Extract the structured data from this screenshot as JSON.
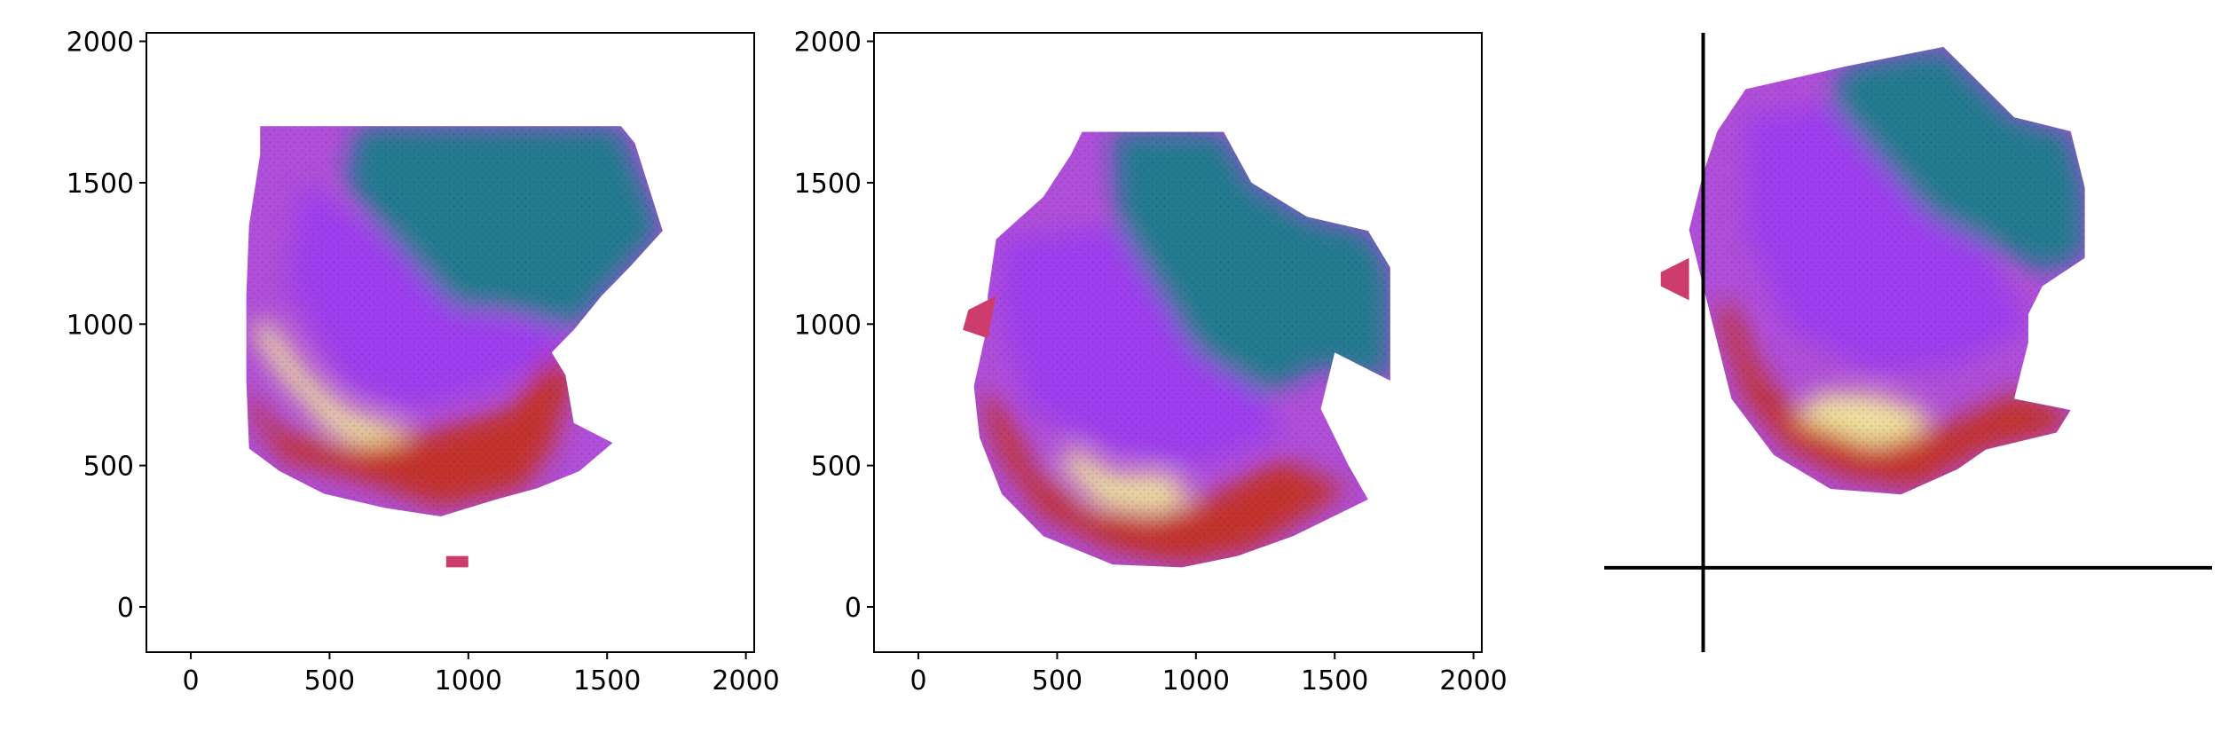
{
  "chart_data": [
    {
      "type": "scatter",
      "panel": "left",
      "title": "",
      "xlabel": "",
      "ylabel": "",
      "xlim": [
        -160,
        2030
      ],
      "ylim": [
        -160,
        2030
      ],
      "xticks": [
        0,
        500,
        1000,
        1500,
        2000
      ],
      "yticks": [
        0,
        500,
        1000,
        1500,
        2000
      ],
      "xtick_labels": [
        "0",
        "500",
        "1000",
        "1500",
        "2000"
      ],
      "ytick_labels": [
        "0",
        "500",
        "1000",
        "1500",
        "2000"
      ],
      "grid": false,
      "legend": "none",
      "marker": "hexagonal spots, RGB-colored",
      "tissue_outline": [
        [
          250,
          1700
        ],
        [
          1550,
          1700
        ],
        [
          1600,
          1640
        ],
        [
          1700,
          1330
        ],
        [
          1580,
          1200
        ],
        [
          1480,
          1100
        ],
        [
          1380,
          980
        ],
        [
          1300,
          900
        ],
        [
          1350,
          820
        ],
        [
          1380,
          650
        ],
        [
          1520,
          580
        ],
        [
          1400,
          480
        ],
        [
          1250,
          420
        ],
        [
          1100,
          380
        ],
        [
          900,
          320
        ],
        [
          700,
          350
        ],
        [
          480,
          400
        ],
        [
          320,
          480
        ],
        [
          210,
          560
        ],
        [
          200,
          800
        ],
        [
          200,
          1100
        ],
        [
          210,
          1350
        ],
        [
          250,
          1600
        ]
      ],
      "island_outline": [
        [
          920,
          180
        ],
        [
          1000,
          180
        ],
        [
          1000,
          140
        ],
        [
          920,
          140
        ]
      ],
      "color_regions": [
        {
          "name": "teal",
          "color": "#1a7f8a",
          "polygon": [
            [
              600,
              1700
            ],
            [
              1550,
              1700
            ],
            [
              1700,
              1330
            ],
            [
              1500,
              1120
            ],
            [
              1380,
              980
            ],
            [
              1150,
              1050
            ],
            [
              950,
              1060
            ],
            [
              720,
              1300
            ],
            [
              560,
              1500
            ]
          ]
        },
        {
          "name": "violet",
          "color": "#9b3cf0",
          "polygon": [
            [
              400,
              1500
            ],
            [
              720,
              1300
            ],
            [
              950,
              1060
            ],
            [
              1380,
              980
            ],
            [
              1300,
              880
            ],
            [
              1100,
              780
            ],
            [
              800,
              700
            ],
            [
              550,
              800
            ],
            [
              350,
              1150
            ]
          ]
        },
        {
          "name": "cream",
          "color": "#f4ee9a",
          "polygon": [
            [
              210,
              1000
            ],
            [
              320,
              820
            ],
            [
              500,
              620
            ],
            [
              700,
              530
            ],
            [
              800,
              620
            ],
            [
              560,
              700
            ],
            [
              420,
              820
            ],
            [
              290,
              1000
            ]
          ]
        },
        {
          "name": "red",
          "color": "#c4301c",
          "polygon": [
            [
              210,
              700
            ],
            [
              330,
              520
            ],
            [
              600,
              450
            ],
            [
              900,
              350
            ],
            [
              1200,
              420
            ],
            [
              1300,
              560
            ],
            [
              1380,
              820
            ],
            [
              1300,
              900
            ],
            [
              1150,
              700
            ],
            [
              800,
              600
            ],
            [
              550,
              560
            ],
            [
              330,
              620
            ],
            [
              210,
              760
            ]
          ]
        }
      ]
    },
    {
      "type": "scatter",
      "panel": "middle",
      "title": "",
      "xlabel": "",
      "ylabel": "",
      "xlim": [
        -160,
        2030
      ],
      "ylim": [
        -160,
        2030
      ],
      "xticks": [
        0,
        500,
        1000,
        1500,
        2000
      ],
      "yticks": [
        0,
        500,
        1000,
        1500,
        2000
      ],
      "xtick_labels": [
        "0",
        "500",
        "1000",
        "1500",
        "2000"
      ],
      "ytick_labels": [
        "0",
        "500",
        "1000",
        "1500",
        "2000"
      ],
      "grid": false,
      "legend": "none",
      "marker": "hexagonal spots, RGB-colored",
      "tissue_outline": [
        [
          590,
          1680
        ],
        [
          1100,
          1680
        ],
        [
          1200,
          1500
        ],
        [
          1400,
          1380
        ],
        [
          1620,
          1330
        ],
        [
          1700,
          1200
        ],
        [
          1700,
          800
        ],
        [
          1500,
          900
        ],
        [
          1450,
          700
        ],
        [
          1550,
          500
        ],
        [
          1620,
          380
        ],
        [
          1350,
          250
        ],
        [
          1150,
          180
        ],
        [
          950,
          140
        ],
        [
          700,
          150
        ],
        [
          450,
          250
        ],
        [
          300,
          400
        ],
        [
          220,
          600
        ],
        [
          200,
          780
        ],
        [
          250,
          1000
        ],
        [
          250,
          1100
        ],
        [
          280,
          1300
        ],
        [
          450,
          1450
        ],
        [
          550,
          1600
        ]
      ],
      "island_outline": [
        [
          180,
          1050
        ],
        [
          280,
          1100
        ],
        [
          250,
          950
        ],
        [
          160,
          980
        ]
      ],
      "color_regions": [
        {
          "name": "teal",
          "color": "#1a7f8a",
          "polygon": [
            [
              700,
              1680
            ],
            [
              1100,
              1680
            ],
            [
              1200,
              1500
            ],
            [
              1400,
              1380
            ],
            [
              1620,
              1330
            ],
            [
              1700,
              1200
            ],
            [
              1700,
              800
            ],
            [
              1450,
              850
            ],
            [
              1250,
              750
            ],
            [
              1000,
              900
            ],
            [
              850,
              1100
            ],
            [
              720,
              1350
            ]
          ]
        },
        {
          "name": "violet",
          "color": "#9b3cf0",
          "polygon": [
            [
              300,
              1300
            ],
            [
              720,
              1350
            ],
            [
              1000,
              900
            ],
            [
              1250,
              750
            ],
            [
              1300,
              600
            ],
            [
              1000,
              500
            ],
            [
              700,
              560
            ],
            [
              400,
              700
            ],
            [
              300,
              1000
            ]
          ]
        },
        {
          "name": "cream",
          "color": "#f4ee9a",
          "polygon": [
            [
              500,
              520
            ],
            [
              650,
              360
            ],
            [
              850,
              330
            ],
            [
              1000,
              380
            ],
            [
              900,
              470
            ],
            [
              700,
              470
            ],
            [
              560,
              560
            ]
          ]
        },
        {
          "name": "red",
          "color": "#c4301c",
          "polygon": [
            [
              220,
              750
            ],
            [
              300,
              520
            ],
            [
              450,
              320
            ],
            [
              700,
              200
            ],
            [
              950,
              150
            ],
            [
              1200,
              200
            ],
            [
              1400,
              320
            ],
            [
              1550,
              420
            ],
            [
              1300,
              520
            ],
            [
              1000,
              360
            ],
            [
              850,
              320
            ],
            [
              600,
              340
            ],
            [
              420,
              480
            ],
            [
              300,
              720
            ]
          ]
        }
      ]
    },
    {
      "type": "scatter",
      "panel": "right",
      "title": "",
      "xlabel": "",
      "ylabel": "",
      "xlim": [
        -350,
        1800
      ],
      "ylim": [
        -300,
        1900
      ],
      "axes": "spines crossing at origin, no ticks",
      "grid": false,
      "legend": "none",
      "marker": "hexagonal spots, RGB-colored",
      "tissue_outline": [
        [
          150,
          1700
        ],
        [
          500,
          1780
        ],
        [
          850,
          1850
        ],
        [
          1100,
          1600
        ],
        [
          1300,
          1550
        ],
        [
          1350,
          1350
        ],
        [
          1350,
          1100
        ],
        [
          1200,
          1000
        ],
        [
          1150,
          900
        ],
        [
          1150,
          800
        ],
        [
          1100,
          600
        ],
        [
          1300,
          560
        ],
        [
          1250,
          480
        ],
        [
          1000,
          420
        ],
        [
          900,
          350
        ],
        [
          700,
          260
        ],
        [
          450,
          280
        ],
        [
          250,
          400
        ],
        [
          100,
          600
        ],
        [
          50,
          800
        ],
        [
          0,
          1000
        ],
        [
          -50,
          1200
        ],
        [
          0,
          1400
        ],
        [
          50,
          1550
        ]
      ],
      "island_outline": [
        [
          -150,
          1050
        ],
        [
          -50,
          1100
        ],
        [
          -50,
          950
        ],
        [
          -150,
          1000
        ]
      ],
      "color_regions": [
        {
          "name": "teal",
          "color": "#1a7f8a",
          "polygon": [
            [
              500,
              1780
            ],
            [
              850,
              1850
            ],
            [
              1100,
              1600
            ],
            [
              1300,
              1550
            ],
            [
              1350,
              1350
            ],
            [
              1350,
              1100
            ],
            [
              1200,
              1050
            ],
            [
              1000,
              1150
            ],
            [
              800,
              1250
            ],
            [
              600,
              1450
            ],
            [
              450,
              1650
            ]
          ]
        },
        {
          "name": "violet",
          "color": "#9b3cf0",
          "polygon": [
            [
              150,
              1600
            ],
            [
              450,
              1650
            ],
            [
              800,
              1250
            ],
            [
              1000,
              1150
            ],
            [
              1150,
              850
            ],
            [
              900,
              720
            ],
            [
              600,
              700
            ],
            [
              300,
              850
            ],
            [
              150,
              1200
            ]
          ]
        },
        {
          "name": "cream",
          "color": "#f4ee9a",
          "polygon": [
            [
              300,
              500
            ],
            [
              500,
              420
            ],
            [
              750,
              430
            ],
            [
              800,
              550
            ],
            [
              600,
              620
            ],
            [
              400,
              620
            ]
          ]
        },
        {
          "name": "red",
          "color": "#c4301c",
          "polygon": [
            [
              50,
              900
            ],
            [
              150,
              600
            ],
            [
              300,
              420
            ],
            [
              500,
              320
            ],
            [
              750,
              280
            ],
            [
              1000,
              420
            ],
            [
              1250,
              480
            ],
            [
              1300,
              560
            ],
            [
              1100,
              620
            ],
            [
              850,
              500
            ],
            [
              600,
              430
            ],
            [
              350,
              520
            ],
            [
              200,
              700
            ],
            [
              100,
              950
            ]
          ]
        }
      ]
    }
  ]
}
